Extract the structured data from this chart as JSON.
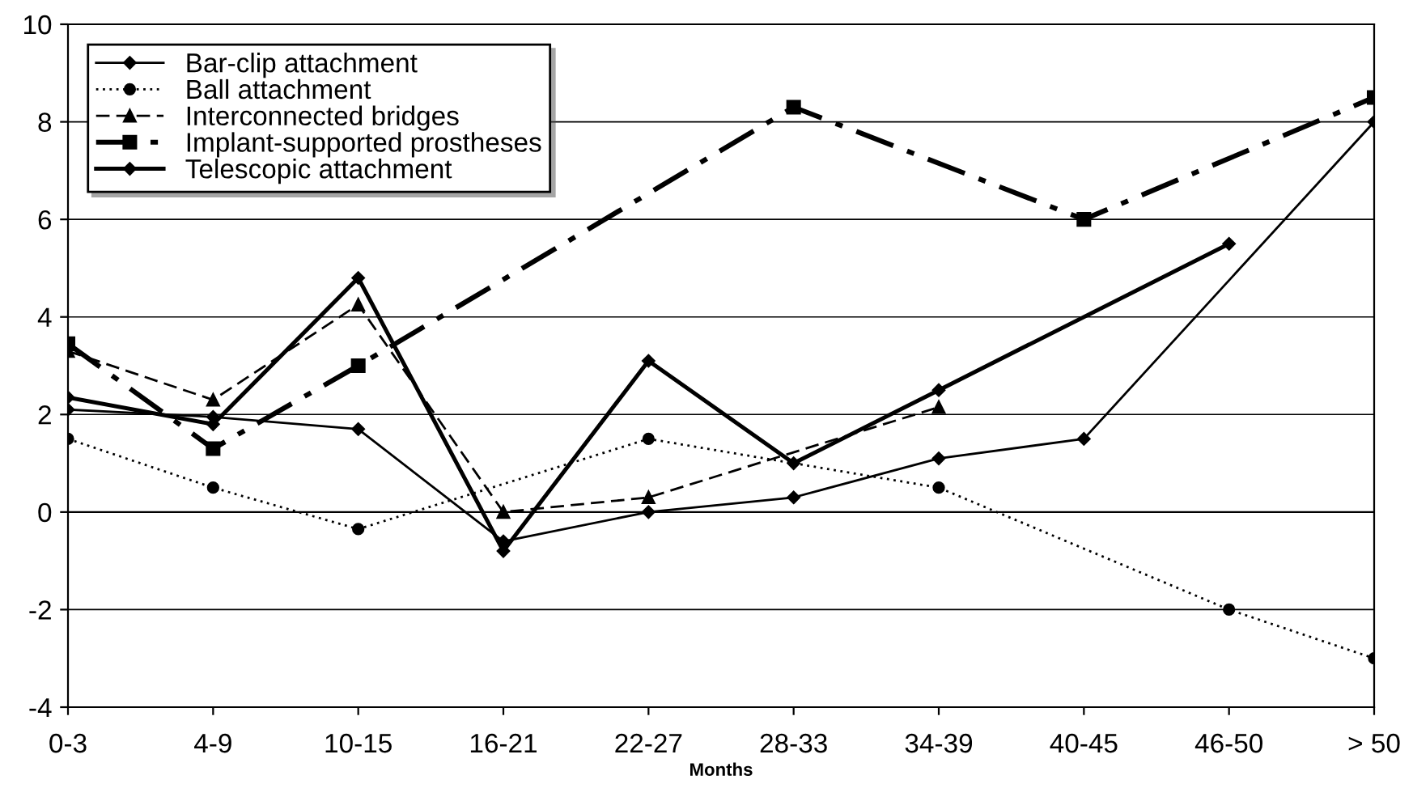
{
  "chart_data": {
    "type": "line",
    "xlabel": "Months",
    "categories": [
      "0-3",
      "4-9",
      "10-15",
      "16-21",
      "22-27",
      "28-33",
      "34-39",
      "40-45",
      "46-50",
      "> 50"
    ],
    "series": [
      {
        "name": "Bar-clip attachment",
        "color": "#000000",
        "marker": "diamond",
        "line_style": "solid",
        "values": [
          2.1,
          1.95,
          1.7,
          -0.6,
          0.0,
          0.3,
          1.1,
          1.5,
          null,
          8.0
        ]
      },
      {
        "name": "Ball attachment",
        "color": "#000000",
        "marker": "circle",
        "line_style": "dotted",
        "values": [
          1.5,
          0.5,
          -0.35,
          null,
          1.5,
          null,
          0.5,
          null,
          -2.0,
          -3.0
        ]
      },
      {
        "name": "Interconnected bridges",
        "color": "#000000",
        "marker": "triangle",
        "line_style": "dashed",
        "values": [
          3.3,
          2.3,
          4.25,
          0.0,
          0.3,
          null,
          2.15,
          null,
          null,
          null
        ]
      },
      {
        "name": "Implant-supported prostheses",
        "color": "#000000",
        "marker": "square",
        "line_style": "dashdot",
        "values": [
          3.45,
          1.3,
          3.0,
          null,
          null,
          8.3,
          null,
          6.0,
          null,
          8.5
        ]
      },
      {
        "name": "Telescopic attachment",
        "color": "#000000",
        "marker": "diamond",
        "line_style": "solid",
        "values": [
          2.35,
          1.8,
          4.8,
          -0.8,
          3.1,
          1.0,
          2.5,
          null,
          5.5,
          null
        ]
      }
    ],
    "ylim": [
      -4,
      10
    ],
    "yticks": [
      -4,
      -2,
      0,
      2,
      4,
      6,
      8,
      10
    ],
    "grid": "y",
    "legend": "top left"
  }
}
